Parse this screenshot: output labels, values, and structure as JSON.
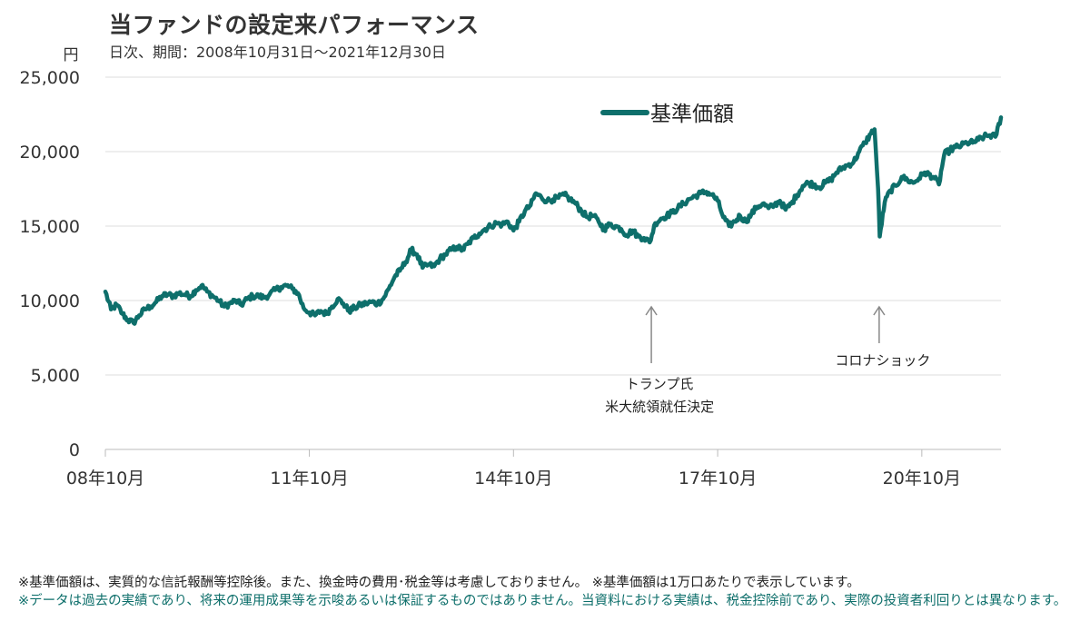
{
  "chart_data": {
    "type": "line",
    "title": "当ファンドの設定来パフォーマンス",
    "subtitle": "日次、期間：2008年10月31日～2021年12月30日",
    "ylabel": "円",
    "ylim": [
      0,
      25000
    ],
    "yticks": [
      0,
      5000,
      10000,
      15000,
      20000,
      25000
    ],
    "ytick_labels": [
      "0",
      "5,000",
      "10,000",
      "15,000",
      "20,000",
      "25,000"
    ],
    "xlim": [
      "2008-10-31",
      "2021-12-30"
    ],
    "xticks": [
      "2008-10",
      "2011-10",
      "2014-10",
      "2017-10",
      "2020-10"
    ],
    "xtick_labels": [
      "08年10月",
      "11年10月",
      "14年10月",
      "17年10月",
      "20年10月"
    ],
    "grid": "horizontal",
    "legend_position": "top-center",
    "series": [
      {
        "name": "基準価額",
        "color": "#0e6f6b",
        "points": [
          [
            "2008-10-31",
            10600
          ],
          [
            "2008-11-30",
            9400
          ],
          [
            "2008-12-31",
            9700
          ],
          [
            "2009-01-31",
            9100
          ],
          [
            "2009-02-28",
            8700
          ],
          [
            "2009-03-31",
            8500
          ],
          [
            "2009-04-30",
            9000
          ],
          [
            "2009-05-31",
            9400
          ],
          [
            "2009-06-30",
            9600
          ],
          [
            "2009-07-31",
            9900
          ],
          [
            "2009-08-31",
            10300
          ],
          [
            "2009-09-30",
            10400
          ],
          [
            "2009-10-31",
            10300
          ],
          [
            "2009-11-30",
            10500
          ],
          [
            "2009-12-31",
            10400
          ],
          [
            "2010-01-31",
            10300
          ],
          [
            "2010-02-28",
            10700
          ],
          [
            "2010-03-31",
            11000
          ],
          [
            "2010-04-30",
            10600
          ],
          [
            "2010-05-31",
            10300
          ],
          [
            "2010-06-30",
            10000
          ],
          [
            "2010-07-31",
            9600
          ],
          [
            "2010-08-31",
            9800
          ],
          [
            "2010-09-30",
            10000
          ],
          [
            "2010-10-31",
            9700
          ],
          [
            "2010-11-30",
            10100
          ],
          [
            "2010-12-31",
            10300
          ],
          [
            "2011-01-31",
            10300
          ],
          [
            "2011-02-28",
            10200
          ],
          [
            "2011-03-31",
            10400
          ],
          [
            "2011-04-30",
            10700
          ],
          [
            "2011-05-31",
            10900
          ],
          [
            "2011-06-30",
            11000
          ],
          [
            "2011-07-31",
            10800
          ],
          [
            "2011-08-31",
            10500
          ],
          [
            "2011-09-30",
            9500
          ],
          [
            "2011-10-31",
            9200
          ],
          [
            "2011-11-30",
            9000
          ],
          [
            "2011-12-31",
            9300
          ],
          [
            "2012-01-31",
            9100
          ],
          [
            "2012-02-29",
            9600
          ],
          [
            "2012-03-31",
            10100
          ],
          [
            "2012-04-30",
            9800
          ],
          [
            "2012-05-31",
            9300
          ],
          [
            "2012-06-30",
            9500
          ],
          [
            "2012-07-31",
            9700
          ],
          [
            "2012-08-31",
            9800
          ],
          [
            "2012-09-30",
            9900
          ],
          [
            "2012-10-31",
            9800
          ],
          [
            "2012-11-30",
            10100
          ],
          [
            "2012-12-31",
            10800
          ],
          [
            "2013-01-31",
            11600
          ],
          [
            "2013-02-28",
            12000
          ],
          [
            "2013-03-31",
            12600
          ],
          [
            "2013-04-30",
            13400
          ],
          [
            "2013-05-31",
            13100
          ],
          [
            "2013-06-30",
            12200
          ],
          [
            "2013-07-31",
            12400
          ],
          [
            "2013-08-31",
            12300
          ],
          [
            "2013-09-30",
            12800
          ],
          [
            "2013-10-31",
            13100
          ],
          [
            "2013-11-30",
            13400
          ],
          [
            "2013-12-31",
            13600
          ],
          [
            "2014-01-31",
            13400
          ],
          [
            "2014-02-28",
            13800
          ],
          [
            "2014-03-31",
            14200
          ],
          [
            "2014-04-30",
            14500
          ],
          [
            "2014-05-31",
            14800
          ],
          [
            "2014-06-30",
            15000
          ],
          [
            "2014-07-31",
            15200
          ],
          [
            "2014-08-31",
            15100
          ],
          [
            "2014-09-30",
            15300
          ],
          [
            "2014-10-31",
            14700
          ],
          [
            "2014-11-30",
            15300
          ],
          [
            "2014-12-31",
            16000
          ],
          [
            "2015-01-31",
            16400
          ],
          [
            "2015-02-28",
            17200
          ],
          [
            "2015-03-31",
            16900
          ],
          [
            "2015-04-30",
            16700
          ],
          [
            "2015-05-31",
            16800
          ],
          [
            "2015-06-30",
            16900
          ],
          [
            "2015-07-31",
            17100
          ],
          [
            "2015-08-31",
            16800
          ],
          [
            "2015-09-30",
            16500
          ],
          [
            "2015-10-31",
            16000
          ],
          [
            "2015-11-30",
            15600
          ],
          [
            "2015-12-31",
            15700
          ],
          [
            "2016-01-31",
            15300
          ],
          [
            "2016-02-29",
            14800
          ],
          [
            "2016-03-31",
            15100
          ],
          [
            "2016-04-30",
            15000
          ],
          [
            "2016-05-31",
            14800
          ],
          [
            "2016-06-30",
            14400
          ],
          [
            "2016-07-31",
            14700
          ],
          [
            "2016-08-31",
            14300
          ],
          [
            "2016-09-30",
            14200
          ],
          [
            "2016-10-31",
            13900
          ],
          [
            "2016-11-30",
            15200
          ],
          [
            "2016-12-31",
            15500
          ],
          [
            "2017-01-31",
            15700
          ],
          [
            "2017-02-28",
            15900
          ],
          [
            "2017-03-31",
            16200
          ],
          [
            "2017-04-30",
            16500
          ],
          [
            "2017-05-31",
            16800
          ],
          [
            "2017-06-30",
            17000
          ],
          [
            "2017-07-31",
            17200
          ],
          [
            "2017-08-31",
            17300
          ],
          [
            "2017-09-30",
            17100
          ],
          [
            "2017-10-31",
            16700
          ],
          [
            "2017-11-30",
            15600
          ],
          [
            "2017-12-31",
            15000
          ],
          [
            "2018-01-31",
            15300
          ],
          [
            "2018-02-28",
            15700
          ],
          [
            "2018-03-31",
            15300
          ],
          [
            "2018-04-30",
            15800
          ],
          [
            "2018-05-31",
            16300
          ],
          [
            "2018-06-30",
            16500
          ],
          [
            "2018-07-31",
            16200
          ],
          [
            "2018-08-31",
            16400
          ],
          [
            "2018-09-30",
            16700
          ],
          [
            "2018-10-31",
            16100
          ],
          [
            "2018-11-30",
            16500
          ],
          [
            "2018-12-31",
            17100
          ],
          [
            "2019-01-31",
            17700
          ],
          [
            "2019-02-28",
            17900
          ],
          [
            "2019-03-31",
            17800
          ],
          [
            "2019-04-30",
            17600
          ],
          [
            "2019-05-31",
            17900
          ],
          [
            "2019-06-30",
            18100
          ],
          [
            "2019-07-31",
            18600
          ],
          [
            "2019-08-31",
            18900
          ],
          [
            "2019-09-30",
            19100
          ],
          [
            "2019-10-31",
            19300
          ],
          [
            "2019-11-30",
            20000
          ],
          [
            "2019-12-31",
            20600
          ],
          [
            "2020-01-31",
            21200
          ],
          [
            "2020-02-20",
            21500
          ],
          [
            "2020-03-10",
            17500
          ],
          [
            "2020-03-19",
            14300
          ],
          [
            "2020-04-15",
            16600
          ],
          [
            "2020-05-15",
            17400
          ],
          [
            "2020-06-15",
            17700
          ],
          [
            "2020-07-15",
            18300
          ],
          [
            "2020-08-15",
            18100
          ],
          [
            "2020-09-15",
            17900
          ],
          [
            "2020-10-15",
            18200
          ],
          [
            "2020-11-15",
            18600
          ],
          [
            "2020-12-31",
            18300
          ],
          [
            "2021-01-31",
            17800
          ],
          [
            "2021-02-28",
            19800
          ],
          [
            "2021-03-31",
            20100
          ],
          [
            "2021-04-30",
            20300
          ],
          [
            "2021-05-31",
            20400
          ],
          [
            "2021-06-30",
            20600
          ],
          [
            "2021-07-31",
            20600
          ],
          [
            "2021-08-31",
            20800
          ],
          [
            "2021-09-30",
            21000
          ],
          [
            "2021-10-31",
            21100
          ],
          [
            "2021-11-30",
            21000
          ],
          [
            "2021-12-30",
            22300
          ]
        ]
      }
    ],
    "annotations": [
      {
        "date": "2016-11-09",
        "lines": [
          "トランプ氏",
          "米大統領就任決定"
        ]
      },
      {
        "date": "2020-03-16",
        "lines": [
          "コロナショック"
        ]
      }
    ]
  },
  "notes": {
    "line1": "※基準価額は、実質的な信託報酬等控除後。また、換金時の費用･税金等は考慮しておりません。 ※基準価額は1万口あたりで表示しています。",
    "line2": "※データは過去の実績であり、将来の運用成果等を示唆あるいは保証するものではありません。当資料における実績は、税金控除前であり、実際の投資者利回りとは異なります。"
  }
}
